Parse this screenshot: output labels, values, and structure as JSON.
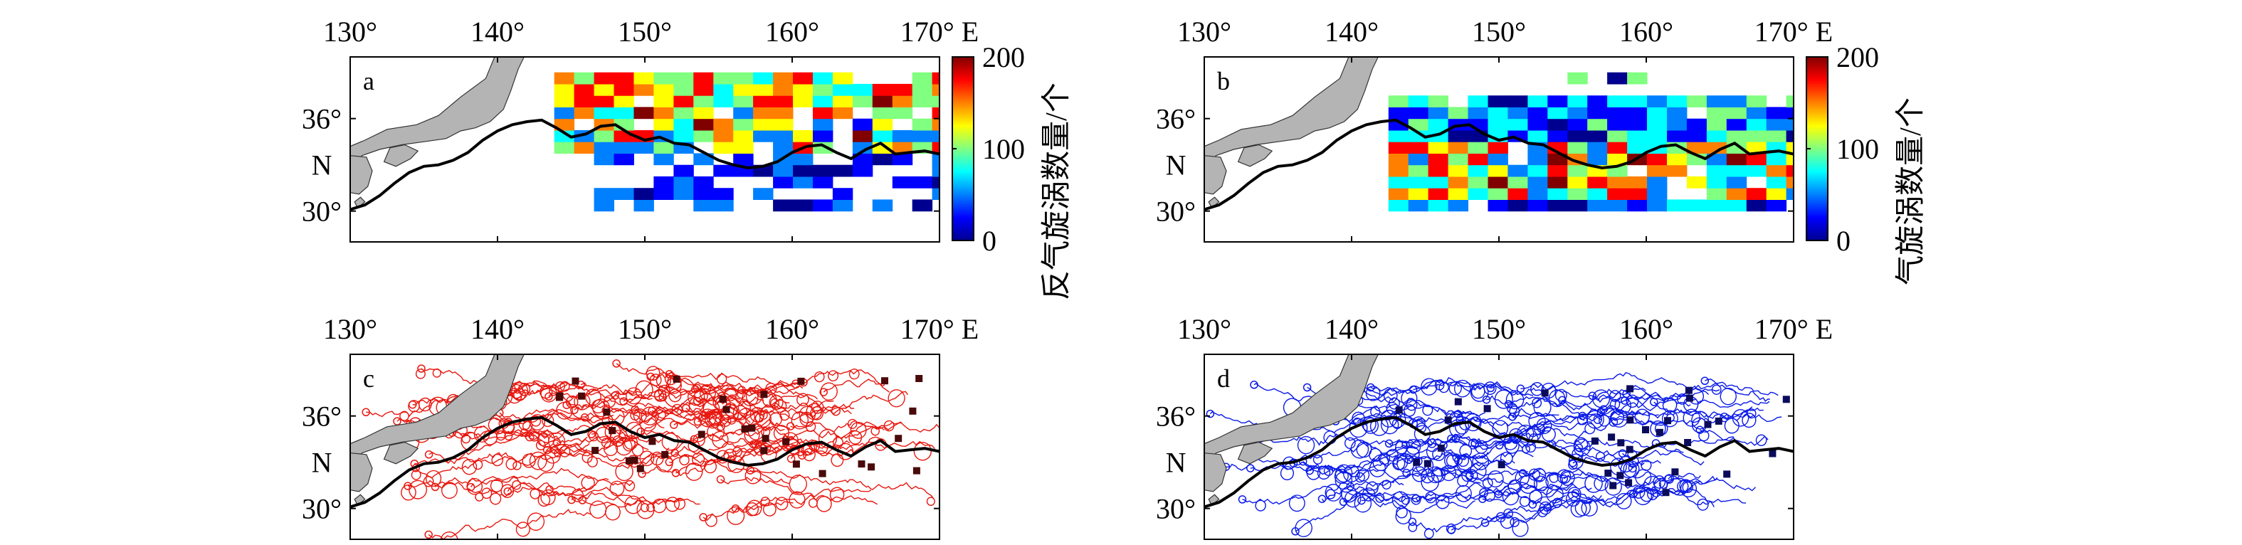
{
  "lon_ticks": [
    "130°",
    "140°",
    "150°",
    "160°",
    "170° E"
  ],
  "lat_ticks": [
    "36°",
    "30°"
  ],
  "lat_unit": "N",
  "panels": {
    "a": {
      "label": "a",
      "kind": "density",
      "colorbar_label": "反气旋涡数量/个"
    },
    "b": {
      "label": "b",
      "kind": "density",
      "colorbar_label": "气旋涡数量/个"
    },
    "c": {
      "label": "c",
      "kind": "tracks",
      "track_color": "#e8170f",
      "marker_color": "#4a0a0a"
    },
    "d": {
      "label": "d",
      "kind": "tracks",
      "track_color": "#0a1ae8",
      "marker_color": "#0b0b5c"
    }
  },
  "colorbar": {
    "ticks": [
      "200",
      "100",
      "0"
    ],
    "range": [
      0,
      200
    ]
  },
  "colormap": [
    "#00008f",
    "#0000ff",
    "#0080ff",
    "#00ffff",
    "#80ff80",
    "#ffff00",
    "#ff8000",
    "#ff0000",
    "#800000"
  ],
  "map": {
    "lon_range": [
      130,
      170
    ],
    "lat_range": [
      28,
      40
    ],
    "land_color": "#b4b4b4",
    "kuroshio_color": "#000000"
  }
}
